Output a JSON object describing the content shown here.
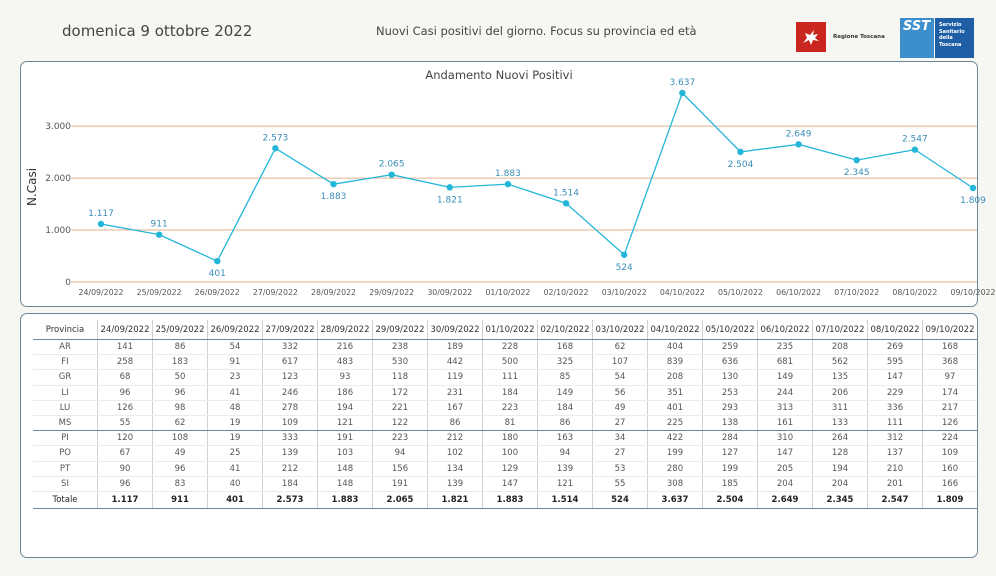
{
  "header": {
    "date": "domenica 9 ottobre 2022",
    "subtitle": "Nuovi Casi positivi del giorno. Focus su provincia ed età",
    "logo_rt_text": "Regione Toscana",
    "logo_sst_word": "SST",
    "logo_sst_sub": "Servizio Sanitario della Toscana"
  },
  "colors": {
    "line": "#23b6d9",
    "label": "#3a8fb8",
    "grid": "#e3b38e",
    "border": "#6b8797"
  },
  "chart_data": {
    "type": "line",
    "title": "Andamento Nuovi Positivi",
    "ylabel": "N.Casi",
    "xlabel": "",
    "ylim": [
      0,
      3637
    ],
    "yticks": [
      0,
      1000,
      2000,
      3000
    ],
    "ytick_labels": [
      "0",
      "1.000",
      "2.000",
      "3.000"
    ],
    "grid": true,
    "categories": [
      "24/09/2022",
      "25/09/2022",
      "26/09/2022",
      "27/09/2022",
      "28/09/2022",
      "29/09/2022",
      "30/09/2022",
      "01/10/2022",
      "02/10/2022",
      "03/10/2022",
      "04/10/2022",
      "05/10/2022",
      "06/10/2022",
      "07/10/2022",
      "08/10/2022",
      "09/10/2022"
    ],
    "values": [
      1117,
      911,
      401,
      2573,
      1883,
      2065,
      1821,
      1883,
      1514,
      524,
      3637,
      2504,
      2649,
      2345,
      2547,
      1809
    ],
    "data_labels": [
      "1.117",
      "911",
      "401",
      "2.573",
      "1.883",
      "2.065",
      "1.821",
      "1.883",
      "1.514",
      "524",
      "3.637",
      "2.504",
      "2.649",
      "2.345",
      "2.547",
      "1.809"
    ],
    "label_positions": [
      "above",
      "above",
      "below",
      "above",
      "below",
      "above",
      "below",
      "above",
      "above",
      "below",
      "above",
      "below",
      "above",
      "below",
      "above",
      "below"
    ]
  },
  "table": {
    "header_first": "Provincia",
    "dates": [
      "24/09/2022",
      "25/09/2022",
      "26/09/2022",
      "27/09/2022",
      "28/09/2022",
      "29/09/2022",
      "30/09/2022",
      "01/10/2022",
      "02/10/2022",
      "03/10/2022",
      "04/10/2022",
      "05/10/2022",
      "06/10/2022",
      "07/10/2022",
      "08/10/2022",
      "09/10/2022"
    ],
    "rows": [
      {
        "prov": "AR",
        "values": [
          "141",
          "86",
          "54",
          "332",
          "216",
          "238",
          "189",
          "228",
          "168",
          "62",
          "404",
          "259",
          "235",
          "208",
          "269",
          "168"
        ]
      },
      {
        "prov": "FI",
        "values": [
          "258",
          "183",
          "91",
          "617",
          "483",
          "530",
          "442",
          "500",
          "325",
          "107",
          "839",
          "636",
          "681",
          "562",
          "595",
          "368"
        ]
      },
      {
        "prov": "GR",
        "values": [
          "68",
          "50",
          "23",
          "123",
          "93",
          "118",
          "119",
          "111",
          "85",
          "54",
          "208",
          "130",
          "149",
          "135",
          "147",
          "97"
        ]
      },
      {
        "prov": "LI",
        "values": [
          "96",
          "96",
          "41",
          "246",
          "186",
          "172",
          "231",
          "184",
          "149",
          "56",
          "351",
          "253",
          "244",
          "206",
          "229",
          "174"
        ]
      },
      {
        "prov": "LU",
        "values": [
          "126",
          "98",
          "48",
          "278",
          "194",
          "221",
          "167",
          "223",
          "184",
          "49",
          "401",
          "293",
          "313",
          "311",
          "336",
          "217"
        ]
      },
      {
        "prov": "MS",
        "values": [
          "55",
          "62",
          "19",
          "109",
          "121",
          "122",
          "86",
          "81",
          "86",
          "27",
          "225",
          "138",
          "161",
          "133",
          "111",
          "126"
        ]
      },
      {
        "prov": "PI",
        "values": [
          "120",
          "108",
          "19",
          "333",
          "191",
          "223",
          "212",
          "180",
          "163",
          "34",
          "422",
          "284",
          "310",
          "264",
          "312",
          "224"
        ]
      },
      {
        "prov": "PO",
        "values": [
          "67",
          "49",
          "25",
          "139",
          "103",
          "94",
          "102",
          "100",
          "94",
          "27",
          "199",
          "127",
          "147",
          "128",
          "137",
          "109"
        ]
      },
      {
        "prov": "PT",
        "values": [
          "90",
          "96",
          "41",
          "212",
          "148",
          "156",
          "134",
          "129",
          "139",
          "53",
          "280",
          "199",
          "205",
          "194",
          "210",
          "160"
        ]
      },
      {
        "prov": "SI",
        "values": [
          "96",
          "83",
          "40",
          "184",
          "148",
          "191",
          "139",
          "147",
          "121",
          "55",
          "308",
          "185",
          "204",
          "204",
          "201",
          "166"
        ]
      }
    ],
    "total": {
      "prov": "Totale",
      "values": [
        "1.117",
        "911",
        "401",
        "2.573",
        "1.883",
        "2.065",
        "1.821",
        "1.883",
        "1.514",
        "524",
        "3.637",
        "2.504",
        "2.649",
        "2.345",
        "2.547",
        "1.809"
      ]
    }
  }
}
